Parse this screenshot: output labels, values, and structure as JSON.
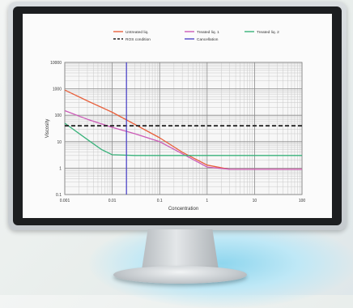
{
  "chart_data": {
    "type": "line",
    "xscale": "log",
    "yscale": "log",
    "xlim": [
      0.001,
      100
    ],
    "ylim": [
      0.1,
      10000
    ],
    "xticks": [
      "0.001",
      "0.01",
      "0.1",
      "1",
      "10",
      "100"
    ],
    "yticks": [
      "0.1",
      "1",
      "10",
      "100",
      "1000",
      "10000"
    ],
    "xlabel": "Concentration",
    "ylabel": "Viscosity",
    "grid": true,
    "legend_position": "top-center",
    "series": [
      {
        "name": "Untreated liq.",
        "color": "#e8603c",
        "style": "solid",
        "x": [
          0.001,
          0.003,
          0.01,
          0.03,
          0.1,
          0.3,
          1,
          3,
          10,
          100
        ],
        "y": [
          900,
          350,
          130,
          45,
          14,
          4,
          1.3,
          0.9,
          0.9,
          0.9
        ]
      },
      {
        "name": "Treated liq. 1",
        "color": "#cc5bb8",
        "style": "solid",
        "x": [
          0.001,
          0.003,
          0.01,
          0.03,
          0.1,
          0.3,
          1,
          3,
          10,
          100
        ],
        "y": [
          150,
          70,
          35,
          20,
          10,
          3.5,
          1.1,
          0.9,
          0.9,
          0.9
        ]
      },
      {
        "name": "Treated liq. 2",
        "color": "#38b27a",
        "style": "solid",
        "x": [
          0.001,
          0.003,
          0.006,
          0.01,
          0.03,
          0.1,
          1,
          10,
          100
        ],
        "y": [
          50,
          12,
          5,
          3.2,
          3,
          3,
          3,
          3,
          3
        ]
      },
      {
        "name": "ROS condition",
        "color": "#222222",
        "style": "dashed",
        "x": [
          0.001,
          100
        ],
        "y": [
          40,
          40
        ]
      },
      {
        "name": "Cancellation",
        "color": "#5048c8",
        "style": "solid",
        "x": [
          0.02,
          0.02
        ],
        "y": [
          0.1,
          10000
        ]
      }
    ]
  }
}
